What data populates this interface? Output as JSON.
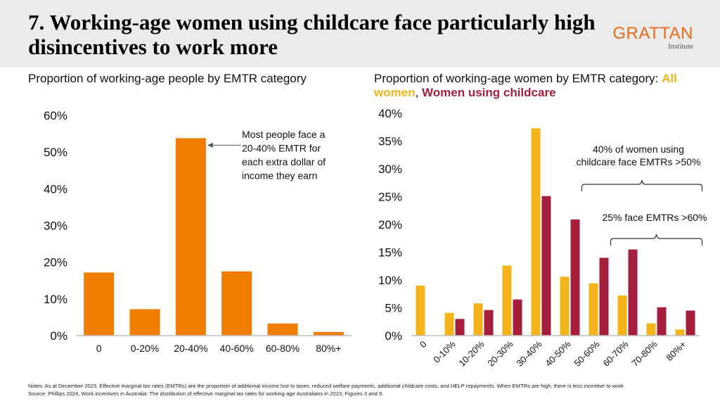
{
  "title": "7. Working-age women using childcare face particularly high disincentives to work more",
  "logo": {
    "name": "GRATTAN",
    "sub": "Institute"
  },
  "left_subtitle": "Proportion of working-age people by EMTR category",
  "right_subtitle": {
    "prefix": "Proportion of working-age women by EMTR category: ",
    "all": "All women",
    "sep": ", ",
    "childcare": "Women using childcare"
  },
  "notes": {
    "line1": "Notes: As at December 2023. Effective marginal tax rates (EMTRs) are the proportion of additional income lost to taxes, reduced welfare payments, additional childcare costs, and HELP repayments. When EMTRs are high, there is less incentive to work.",
    "source": "Source: Phillips 2024, Work incentives in Australia: The distribution of effective marginal tax rates for working-age Australians in 2023, Figures 3 and 9."
  },
  "colors": {
    "orange": "#ef7d00",
    "yellow": "#f2b418",
    "red": "#a51f3c",
    "axis": "#bfbfbf"
  },
  "chart_data": [
    {
      "type": "bar",
      "title": "Proportion of working-age people by EMTR category",
      "categories": [
        "0",
        "0-20%",
        "20-40%",
        "40-60%",
        "60-80%",
        "80%+"
      ],
      "values": [
        17.2,
        7.2,
        53.8,
        17.5,
        3.3,
        1.0
      ],
      "ylim": [
        0,
        60
      ],
      "yticks": [
        0,
        10,
        20,
        30,
        40,
        50,
        60
      ],
      "ytick_labels": [
        "0%",
        "10%",
        "20%",
        "30%",
        "40%",
        "50%",
        "60%"
      ],
      "annotation": [
        "Most people face a",
        "20-40% EMTR for",
        "each extra dollar of",
        "income they earn"
      ]
    },
    {
      "type": "bar",
      "title": "Proportion of working-age women by EMTR category",
      "categories": [
        "0",
        "0-10%",
        "10-20%",
        "20-30%",
        "30-40%",
        "40-50%",
        "50-60%",
        "60-70%",
        "70-80%",
        "80%+"
      ],
      "series": [
        {
          "name": "All women",
          "values": [
            9.0,
            4.1,
            5.8,
            12.6,
            37.3,
            10.6,
            9.4,
            7.2,
            2.2,
            1.1
          ]
        },
        {
          "name": "Women using childcare",
          "values": [
            0,
            3.0,
            4.6,
            6.5,
            25.1,
            20.9,
            14.0,
            15.5,
            5.1,
            4.5
          ]
        }
      ],
      "ylim": [
        0,
        40
      ],
      "yticks": [
        0,
        5,
        10,
        15,
        20,
        25,
        30,
        35,
        40
      ],
      "ytick_labels": [
        "0%",
        "5%",
        "10%",
        "15%",
        "20%",
        "25%",
        "30%",
        "35%",
        "40%"
      ],
      "annotations": {
        "above50": [
          "40% of women using",
          "childcare face EMTRs >50%"
        ],
        "above60": [
          "25% face EMTRs >60%"
        ]
      }
    }
  ]
}
